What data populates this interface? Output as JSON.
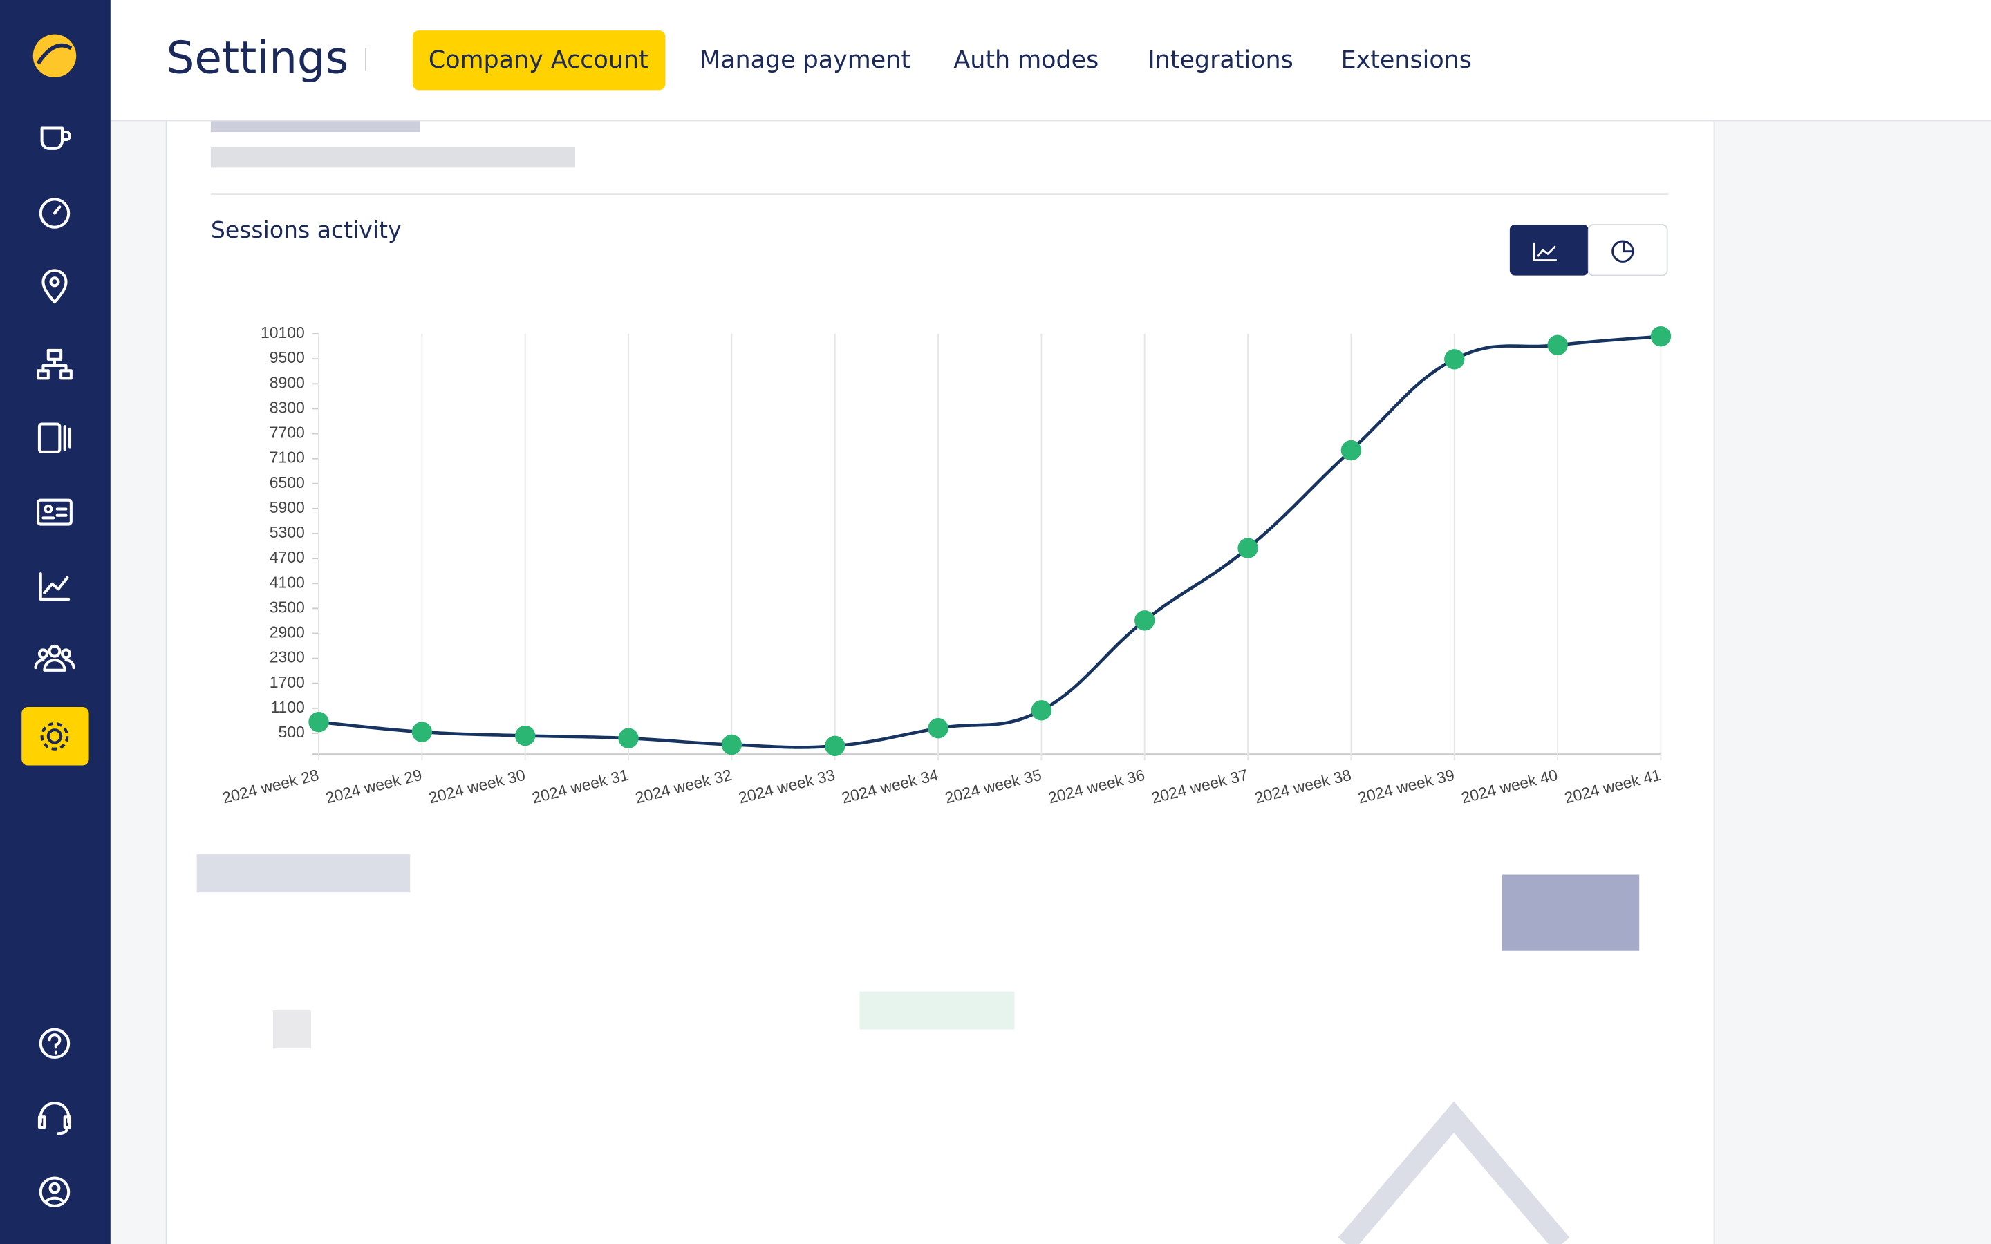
{
  "header": {
    "title": "Settings",
    "tabs": [
      "Company Account",
      "Manage payment",
      "Auth modes",
      "Integrations",
      "Extensions"
    ]
  },
  "chart_data": {
    "type": "line",
    "title": "Sessions activity",
    "categories": [
      "2024 week 28",
      "2024 week 29",
      "2024 week 30",
      "2024 week 31",
      "2024 week 32",
      "2024 week 33",
      "2024 week 34",
      "2024 week 35",
      "2024 week 36",
      "2024 week 37",
      "2024 week 38",
      "2024 week 39",
      "2024 week 40",
      "2024 week 41"
    ],
    "values": [
      770,
      530,
      440,
      380,
      225,
      195,
      620,
      1050,
      3210,
      4950,
      7300,
      9490,
      9830,
      10040
    ],
    "color": "#16345f",
    "marker_color": "#2bb673",
    "ylim": [
      0,
      10100
    ],
    "yticks": [
      500,
      1100,
      1700,
      2300,
      2900,
      3500,
      4100,
      4700,
      5300,
      5900,
      6500,
      7100,
      7700,
      8300,
      8900,
      9500,
      10100
    ],
    "grid": true
  }
}
